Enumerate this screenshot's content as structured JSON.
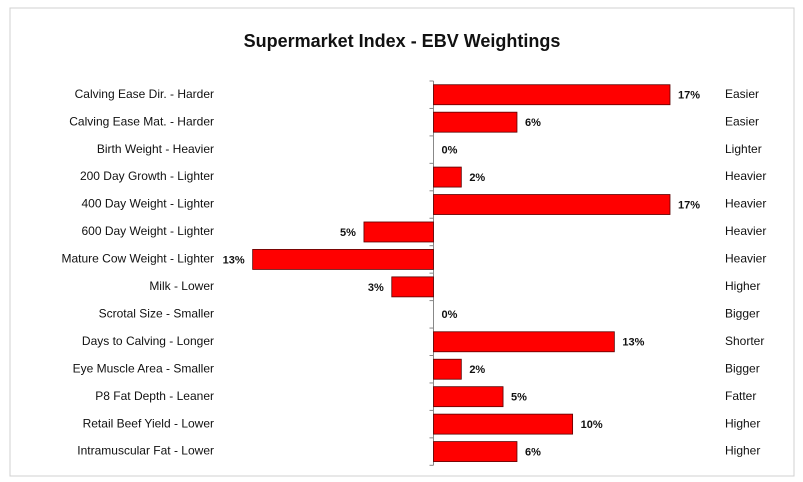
{
  "chart_data": {
    "type": "bar",
    "orientation": "horizontal",
    "title": "Supermarket Index  - EBV Weightings",
    "categories": [
      "Calving Ease Dir. - Harder",
      "Calving Ease Mat. - Harder",
      "Birth Weight - Heavier",
      "200 Day Growth - Lighter",
      "400 Day Weight - Lighter",
      "600 Day Weight - Lighter",
      "Mature Cow Weight - Lighter",
      "Milk - Lower",
      "Scrotal Size - Smaller",
      "Days to Calving - Longer",
      "Eye Muscle Area - Smaller",
      "P8 Fat Depth - Leaner",
      "Retail Beef Yield - Lower",
      "Intramuscular Fat - Lower"
    ],
    "right_labels": [
      "Easier",
      "Easier",
      "Lighter",
      "Heavier",
      "Heavier",
      "Heavier",
      "Heavier",
      "Higher",
      "Bigger",
      "Shorter",
      "Bigger",
      "Fatter",
      "Higher",
      "Higher"
    ],
    "values": [
      17,
      6,
      0,
      2,
      17,
      -5,
      -13,
      -3,
      0,
      13,
      2,
      5,
      10,
      6
    ],
    "value_labels": [
      "17%",
      "6%",
      "0%",
      "2%",
      "17%",
      "5%",
      "13%",
      "3%",
      "0%",
      "13%",
      "2%",
      "5%",
      "10%",
      "6%"
    ],
    "color": "#ff0000",
    "xlim": [
      -17,
      17
    ]
  }
}
